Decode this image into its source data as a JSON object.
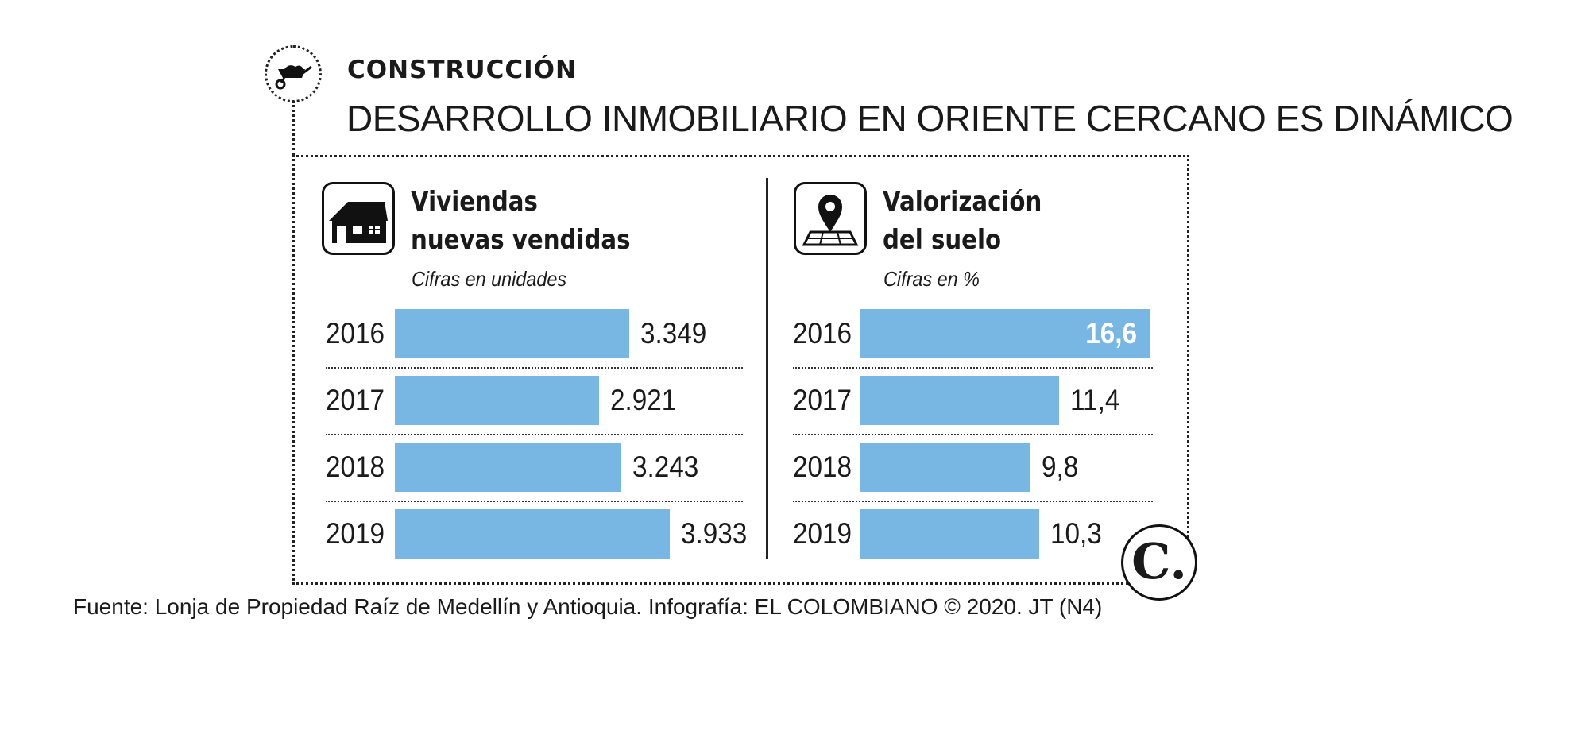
{
  "header": {
    "section_label": "CONSTRUCCIÓN",
    "section_icon": "wheelbarrow-icon",
    "headline": "DESARROLLO INMOBILIARIO EN ORIENTE CERCANO ES DINÁMICO"
  },
  "colors": {
    "bar": "#78b7e4",
    "text": "#1a1a1a",
    "inside_label": "#ffffff"
  },
  "chart_data": [
    {
      "type": "bar",
      "orientation": "horizontal",
      "icon": "house-icon",
      "title_line1": "Viviendas",
      "title_line2": "nuevas vendidas",
      "subtitle": "Cifras en unidades",
      "categories": [
        "2016",
        "2017",
        "2018",
        "2019"
      ],
      "values": [
        3349,
        2921,
        3243,
        3933
      ],
      "labels": [
        "3.349",
        "2.921",
        "3.243",
        "3.933"
      ],
      "xlim": [
        0,
        3933
      ],
      "grid": false
    },
    {
      "type": "bar",
      "orientation": "horizontal",
      "icon": "map-pin-icon",
      "title_line1": "Valorización",
      "title_line2": "del suelo",
      "subtitle": "Cifras en %",
      "categories": [
        "2016",
        "2017",
        "2018",
        "2019"
      ],
      "values": [
        16.6,
        11.4,
        9.8,
        10.3
      ],
      "labels": [
        "16,6",
        "11,4",
        "9,8",
        "10,3"
      ],
      "xlim": [
        0,
        16.6
      ],
      "grid": false
    }
  ],
  "logo": {
    "text": "C."
  },
  "source": "Fuente: Lonja de Propiedad Raíz de Medellín y Antioquia. Infografía: EL COLOMBIANO © 2020. JT (N4)"
}
